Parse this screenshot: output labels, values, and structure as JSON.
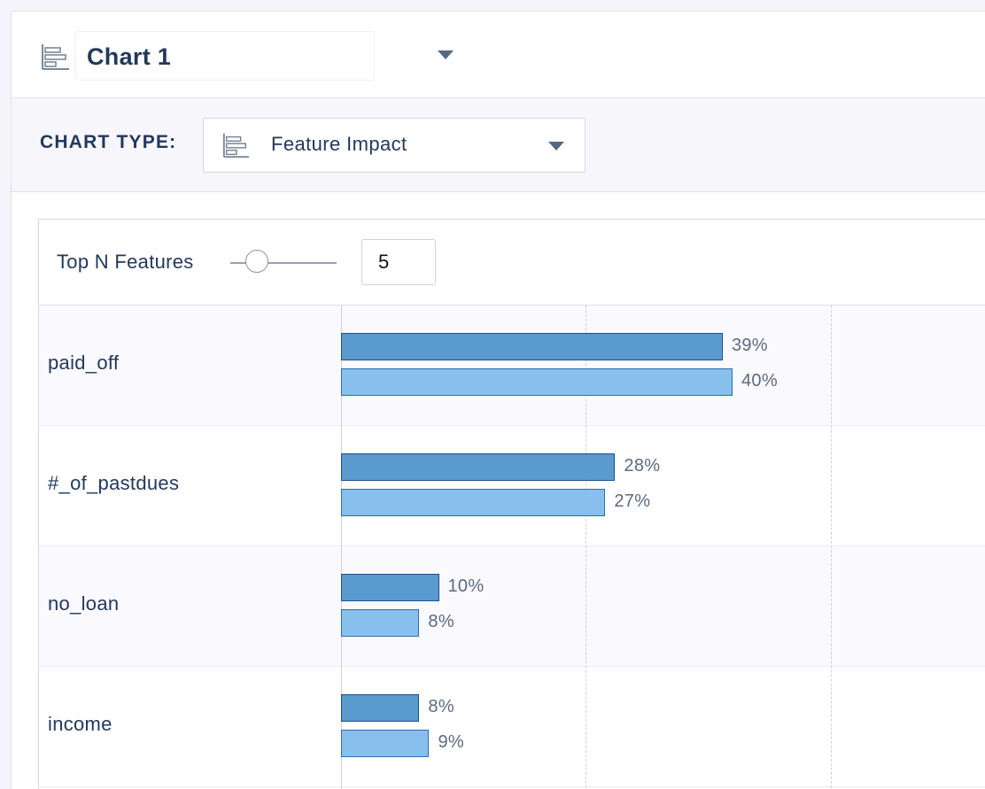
{
  "header": {
    "chart_name": "Chart 1",
    "icon": "bar-chart-icon",
    "dropdown_icon": "caret-down-icon"
  },
  "chart_type_bar": {
    "label": "CHART TYPE:",
    "selected": "Feature Impact",
    "icon": "bar-chart-icon"
  },
  "controls": {
    "top_n_label": "Top N Features",
    "top_n_value": "5",
    "slider_fraction": 0.25
  },
  "colors": {
    "series_1_fill": "#5b9ace",
    "series_2_fill": "#89bfed",
    "text": "#23395b"
  },
  "chart_data": {
    "type": "bar",
    "orientation": "horizontal",
    "categories": [
      "paid_off",
      "#_of_pastdues",
      "no_loan",
      "income"
    ],
    "series": [
      {
        "values": [
          39,
          28,
          10,
          8
        ],
        "labels": [
          "39%",
          "28%",
          "10%",
          "8%"
        ]
      },
      {
        "values": [
          40,
          27,
          8,
          9
        ],
        "labels": [
          "40%",
          "27%",
          "8%",
          "9%"
        ]
      }
    ],
    "xlim": [
      0,
      100
    ],
    "unit": "%",
    "grid": true,
    "gridlines": [
      0,
      25,
      50,
      75,
      100
    ]
  }
}
